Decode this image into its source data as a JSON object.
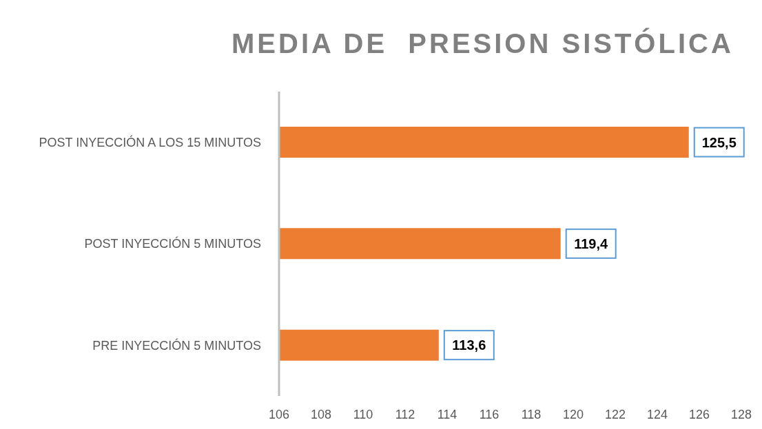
{
  "chart_data": {
    "type": "bar",
    "orientation": "horizontal",
    "title": "MEDIA DE  PRESION SISTÓLICA",
    "categories": [
      "POST INYECCIÓN A LOS 15 MINUTOS",
      "POST INYECCIÓN 5 MINUTOS",
      "PRE INYECCIÓN 5 MINUTOS"
    ],
    "values": [
      125.5,
      119.4,
      113.6
    ],
    "value_labels": [
      "125,5",
      "119,4",
      "113,6"
    ],
    "color": "#ed7d31",
    "xlim": [
      106,
      128
    ],
    "xticks": [
      106,
      108,
      110,
      112,
      114,
      116,
      118,
      120,
      122,
      124,
      126,
      128
    ],
    "grid": false,
    "legend": false
  }
}
